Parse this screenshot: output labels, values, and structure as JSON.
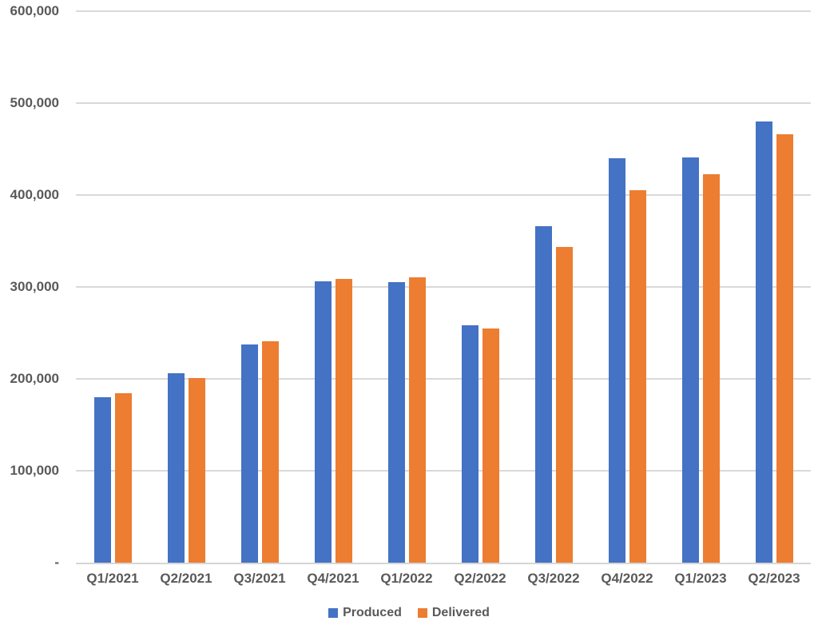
{
  "chart_data": {
    "type": "bar",
    "title": "",
    "xlabel": "",
    "ylabel": "",
    "grid": true,
    "legend_position": "bottom",
    "ylim": [
      0,
      600000
    ],
    "yticks": {
      "values": [
        600000,
        500000,
        400000,
        300000,
        200000,
        100000,
        0
      ],
      "labels": [
        "600,000",
        "500,000",
        "400,000",
        "300,000",
        "200,000",
        "100,000",
        "-"
      ]
    },
    "categories": [
      "Q1/2021",
      "Q2/2021",
      "Q3/2021",
      "Q4/2021",
      "Q1/2022",
      "Q2/2022",
      "Q3/2022",
      "Q4/2022",
      "Q1/2023",
      "Q2/2023"
    ],
    "series": [
      {
        "name": "Produced",
        "color": "#4472C4",
        "values": [
          180338,
          206421,
          237823,
          305840,
          305407,
          258580,
          365923,
          439701,
          440808,
          479700
        ]
      },
      {
        "name": "Delivered",
        "color": "#ED7D31",
        "values": [
          184800,
          201250,
          241300,
          308600,
          310048,
          254695,
          343830,
          405278,
          422875,
          466140
        ]
      }
    ]
  },
  "colors": {
    "label_text": "#595959",
    "gridline": "#D9D9D9",
    "axis_line": "#D5D5D5",
    "background": "#FFFFFF"
  }
}
